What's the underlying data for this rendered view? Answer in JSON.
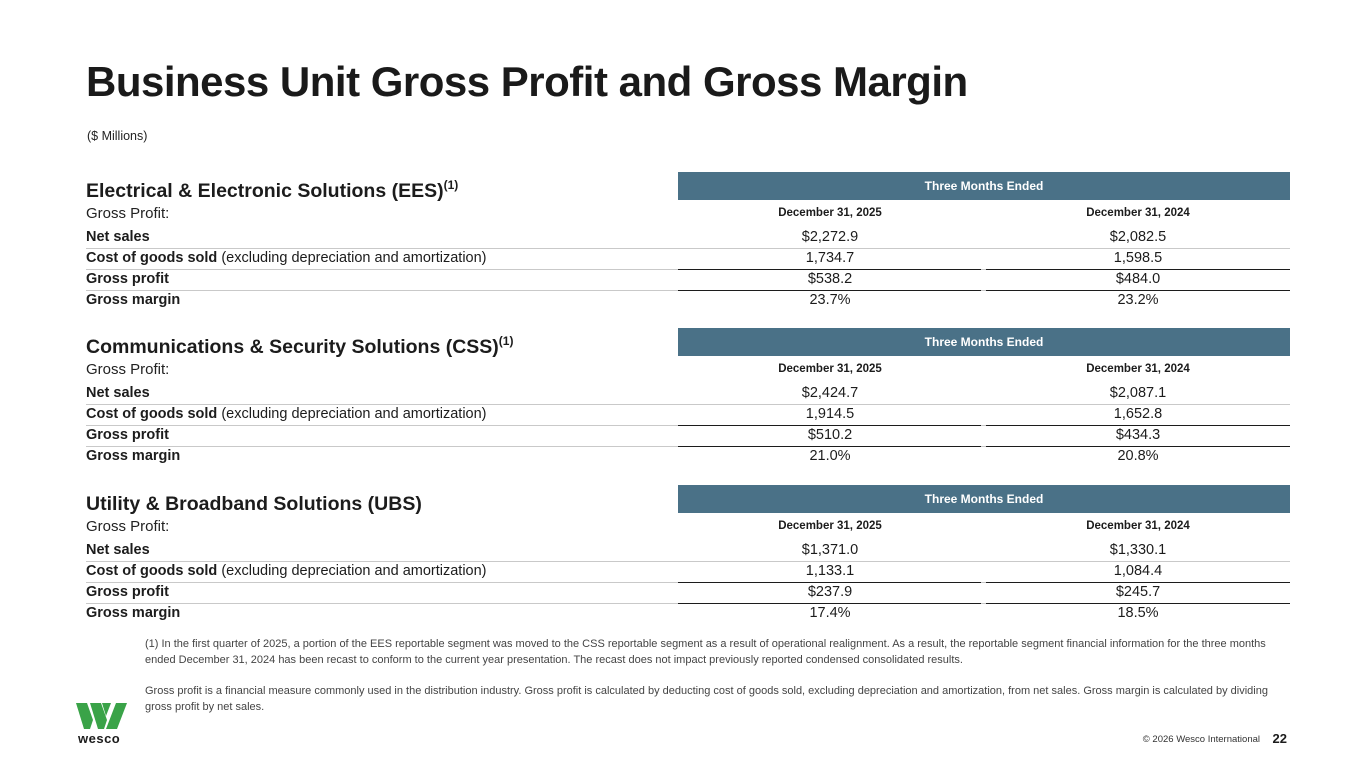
{
  "page": {
    "title": "Business Unit Gross Profit and Gross Margin",
    "units": "($ Millions)"
  },
  "sections": [
    {
      "title": "Electrical & Electronic Solutions (EES)",
      "title_sup": "(1)",
      "period_header": "Three Months Ended",
      "row_header": "Gross Profit:",
      "columns": [
        "December 31, 2025",
        "December 31, 2024"
      ],
      "rows": [
        {
          "label_bold": "Net sales",
          "label_rest": "",
          "values": [
            "$2,272.9",
            "$2,082.5"
          ]
        },
        {
          "label_bold": "Cost of goods sold",
          "label_rest": " (excluding depreciation and amortization)",
          "values": [
            "1,734.7",
            "1,598.5"
          ]
        },
        {
          "label_bold": "Gross profit",
          "label_rest": "",
          "values": [
            "$538.2",
            "$484.0"
          ]
        },
        {
          "label_bold": "Gross margin",
          "label_rest": "",
          "values": [
            "23.7%",
            "23.2%"
          ]
        }
      ]
    },
    {
      "title": "Communications & Security Solutions (CSS)",
      "title_sup": "(1)",
      "period_header": "Three Months Ended",
      "row_header": "Gross Profit:",
      "columns": [
        "December 31, 2025",
        "December 31, 2024"
      ],
      "rows": [
        {
          "label_bold": "Net sales",
          "label_rest": "",
          "values": [
            "$2,424.7",
            "$2,087.1"
          ]
        },
        {
          "label_bold": "Cost of goods sold",
          "label_rest": " (excluding depreciation and amortization)",
          "values": [
            "1,914.5",
            "1,652.8"
          ]
        },
        {
          "label_bold": "Gross profit",
          "label_rest": "",
          "values": [
            "$510.2",
            "$434.3"
          ]
        },
        {
          "label_bold": "Gross margin",
          "label_rest": "",
          "values": [
            "21.0%",
            "20.8%"
          ]
        }
      ]
    },
    {
      "title": "Utility & Broadband Solutions (UBS)",
      "title_sup": "",
      "period_header": "Three Months Ended",
      "row_header": "Gross Profit:",
      "columns": [
        "December 31, 2025",
        "December 31, 2024"
      ],
      "rows": [
        {
          "label_bold": "Net sales",
          "label_rest": "",
          "values": [
            "$1,371.0",
            "$1,330.1"
          ]
        },
        {
          "label_bold": "Cost of goods sold",
          "label_rest": " (excluding depreciation and amortization)",
          "values": [
            "1,133.1",
            "1,084.4"
          ]
        },
        {
          "label_bold": "Gross profit",
          "label_rest": "",
          "values": [
            "$237.9",
            "$245.7"
          ]
        },
        {
          "label_bold": "Gross margin",
          "label_rest": "",
          "values": [
            "17.4%",
            "18.5%"
          ]
        }
      ]
    }
  ],
  "footnotes": {
    "note1": "(1)  In the first quarter of 2025, a portion of the EES reportable segment was moved to the CSS reportable segment as a result of operational realignment. As a result, the reportable segment financial information for the three months ended December 31, 2024 has been recast to conform to the current year presentation. The recast does not impact previously reported condensed consolidated results.",
    "note2": "Gross profit is a financial measure commonly used in the distribution industry. Gross profit is calculated by deducting cost of goods sold, excluding depreciation and amortization, from net sales. Gross margin is calculated by dividing gross profit by net sales."
  },
  "footer": {
    "logo_text": "wesco",
    "copyright": "© 2026 Wesco International",
    "page_number": "22"
  },
  "colors": {
    "header_band": "#4a7187",
    "brand_green": "#3aa348"
  }
}
